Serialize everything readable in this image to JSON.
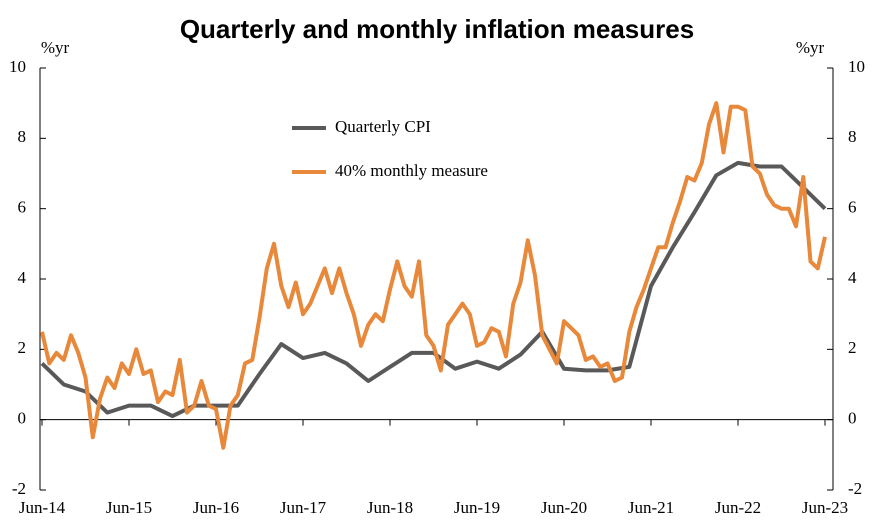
{
  "chart_data": {
    "type": "line",
    "title": "Quarterly and monthly inflation measures",
    "y_label": "%yr",
    "y2_label": "%yr",
    "xlim": [
      "Jun-14",
      "Jun-23"
    ],
    "xticks": [
      "Jun-14",
      "Jun-15",
      "Jun-16",
      "Jun-17",
      "Jun-18",
      "Jun-19",
      "Jun-20",
      "Jun-21",
      "Jun-22",
      "Jun-23"
    ],
    "ylim": [
      -2,
      10
    ],
    "yticks": [
      -2,
      0,
      2,
      4,
      6,
      8,
      10
    ],
    "y2lim": [
      -2,
      10
    ],
    "y2ticks": [
      -2,
      0,
      2,
      4,
      6,
      8,
      10
    ],
    "legend": "upper-center",
    "series": [
      {
        "name": "Quarterly CPI",
        "color": "#595959",
        "x": [
          "Jun-14",
          "Sep-14",
          "Dec-14",
          "Mar-15",
          "Jun-15",
          "Sep-15",
          "Dec-15",
          "Mar-16",
          "Jun-16",
          "Sep-16",
          "Dec-16",
          "Mar-17",
          "Jun-17",
          "Sep-17",
          "Dec-17",
          "Mar-18",
          "Jun-18",
          "Sep-18",
          "Dec-18",
          "Mar-19",
          "Jun-19",
          "Sep-19",
          "Dec-19",
          "Mar-20",
          "Jun-20",
          "Sep-20",
          "Dec-20",
          "Mar-21",
          "Jun-21",
          "Sep-21",
          "Dec-21",
          "Mar-22",
          "Jun-22",
          "Sep-22",
          "Dec-22",
          "Mar-23",
          "Jun-23"
        ],
        "values": [
          1.6,
          1.0,
          0.8,
          0.2,
          0.4,
          0.4,
          0.1,
          0.4,
          0.4,
          0.4,
          1.3,
          2.15,
          1.75,
          1.9,
          1.6,
          1.1,
          1.5,
          1.9,
          1.9,
          1.45,
          1.65,
          1.45,
          1.85,
          2.5,
          1.45,
          1.4,
          1.4,
          1.5,
          3.8,
          4.9,
          5.9,
          6.95,
          7.3,
          7.2,
          7.2,
          6.6,
          6.0
        ]
      },
      {
        "name": "40% monthly measure",
        "color": "#e8883a",
        "x": [
          "Jun-14",
          "Jul-14",
          "Aug-14",
          "Sep-14",
          "Oct-14",
          "Nov-14",
          "Dec-14",
          "Jan-15",
          "Feb-15",
          "Mar-15",
          "Apr-15",
          "May-15",
          "Jun-15",
          "Jul-15",
          "Aug-15",
          "Sep-15",
          "Oct-15",
          "Nov-15",
          "Dec-15",
          "Jan-16",
          "Feb-16",
          "Mar-16",
          "Apr-16",
          "May-16",
          "Jun-16",
          "Jul-16",
          "Aug-16",
          "Sep-16",
          "Oct-16",
          "Nov-16",
          "Dec-16",
          "Jan-17",
          "Feb-17",
          "Mar-17",
          "Apr-17",
          "May-17",
          "Jun-17",
          "Jul-17",
          "Aug-17",
          "Sep-17",
          "Oct-17",
          "Nov-17",
          "Dec-17",
          "Jan-18",
          "Feb-18",
          "Mar-18",
          "Apr-18",
          "May-18",
          "Jun-18",
          "Jul-18",
          "Aug-18",
          "Sep-18",
          "Oct-18",
          "Nov-18",
          "Dec-18",
          "Jan-19",
          "Feb-19",
          "Mar-19",
          "Apr-19",
          "May-19",
          "Jun-19",
          "Jul-19",
          "Aug-19",
          "Sep-19",
          "Oct-19",
          "Nov-19",
          "Dec-19",
          "Jan-20",
          "Feb-20",
          "Mar-20",
          "Apr-20",
          "May-20",
          "Jun-20",
          "Jul-20",
          "Aug-20",
          "Sep-20",
          "Oct-20",
          "Nov-20",
          "Dec-20",
          "Jan-21",
          "Feb-21",
          "Mar-21",
          "Apr-21",
          "May-21",
          "Jun-21",
          "Jul-21",
          "Aug-21",
          "Sep-21",
          "Oct-21",
          "Nov-21",
          "Dec-21",
          "Jan-22",
          "Feb-22",
          "Mar-22",
          "Apr-22",
          "May-22",
          "Jun-22",
          "Jul-22",
          "Aug-22",
          "Sep-22",
          "Oct-22",
          "Nov-22",
          "Dec-22",
          "Jan-23",
          "Feb-23",
          "Mar-23",
          "Apr-23",
          "May-23",
          "Jun-23"
        ],
        "values": [
          2.5,
          1.6,
          1.9,
          1.7,
          2.4,
          1.9,
          1.2,
          -0.5,
          0.6,
          1.2,
          0.9,
          1.6,
          1.3,
          2.0,
          1.3,
          1.4,
          0.5,
          0.8,
          0.7,
          1.7,
          0.2,
          0.4,
          1.1,
          0.4,
          0.3,
          -0.8,
          0.4,
          0.7,
          1.6,
          1.7,
          2.9,
          4.3,
          5.0,
          3.8,
          3.2,
          3.9,
          3.0,
          3.3,
          3.8,
          4.3,
          3.6,
          4.3,
          3.6,
          3.0,
          2.1,
          2.7,
          3.0,
          2.8,
          3.7,
          4.5,
          3.8,
          3.5,
          4.5,
          2.4,
          2.1,
          1.4,
          2.7,
          3.0,
          3.3,
          3.0,
          2.1,
          2.2,
          2.6,
          2.5,
          1.8,
          3.3,
          3.9,
          5.1,
          4.1,
          2.4,
          2.0,
          1.6,
          2.8,
          2.6,
          2.4,
          1.7,
          1.8,
          1.5,
          1.6,
          1.1,
          1.2,
          2.5,
          3.2,
          3.7,
          4.3,
          4.9,
          4.9,
          5.6,
          6.2,
          6.9,
          6.8,
          7.3,
          8.4,
          9.0,
          7.6,
          8.9,
          8.9,
          8.8,
          7.2,
          7.0,
          6.4,
          6.1,
          6.0,
          6.0,
          5.5,
          6.9,
          4.5,
          4.3,
          5.2
        ]
      }
    ]
  }
}
